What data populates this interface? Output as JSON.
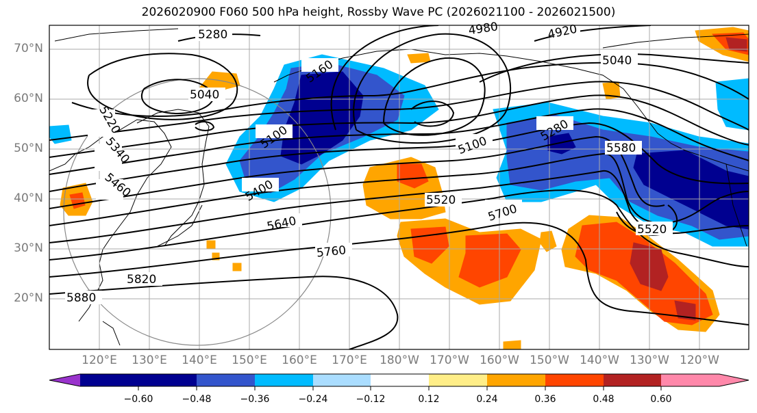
{
  "title": "2026020900 F060 500 hPa height, Rossby Wave PC (2026021100 - 2026021500)",
  "lat_labels": [
    "70°N",
    "60°N",
    "50°N",
    "40°N",
    "30°N",
    "20°N"
  ],
  "lon_labels": [
    "120°E",
    "130°E",
    "140°E",
    "150°E",
    "160°E",
    "170°E",
    "180°W",
    "170°W",
    "160°W",
    "150°W",
    "140°W",
    "130°W",
    "120°W"
  ],
  "contour_labels": [
    "5280",
    "4980",
    "4920",
    "5040",
    "5160",
    "5040",
    "5220",
    "5100",
    "5100",
    "5280",
    "5580",
    "5340",
    "5460",
    "5400",
    "5520",
    "5700",
    "5640",
    "5520",
    "5760",
    "5820",
    "5880"
  ],
  "colorbar": {
    "tick_labels": [
      "−0.60",
      "−0.48",
      "−0.36",
      "−0.24",
      "−0.12",
      "0.12",
      "0.24",
      "0.36",
      "0.48",
      "0.60"
    ],
    "colors": {
      "under": "#9933cc",
      "b1": "#000090",
      "b2": "#3355cc",
      "b3": "#00bbff",
      "b4": "#aaddff",
      "b5": "#ffffff",
      "b6": "#ffee88",
      "b7": "#ffa500",
      "b8": "#ff4500",
      "b9": "#b22222",
      "over": "#ff88aa"
    }
  }
}
